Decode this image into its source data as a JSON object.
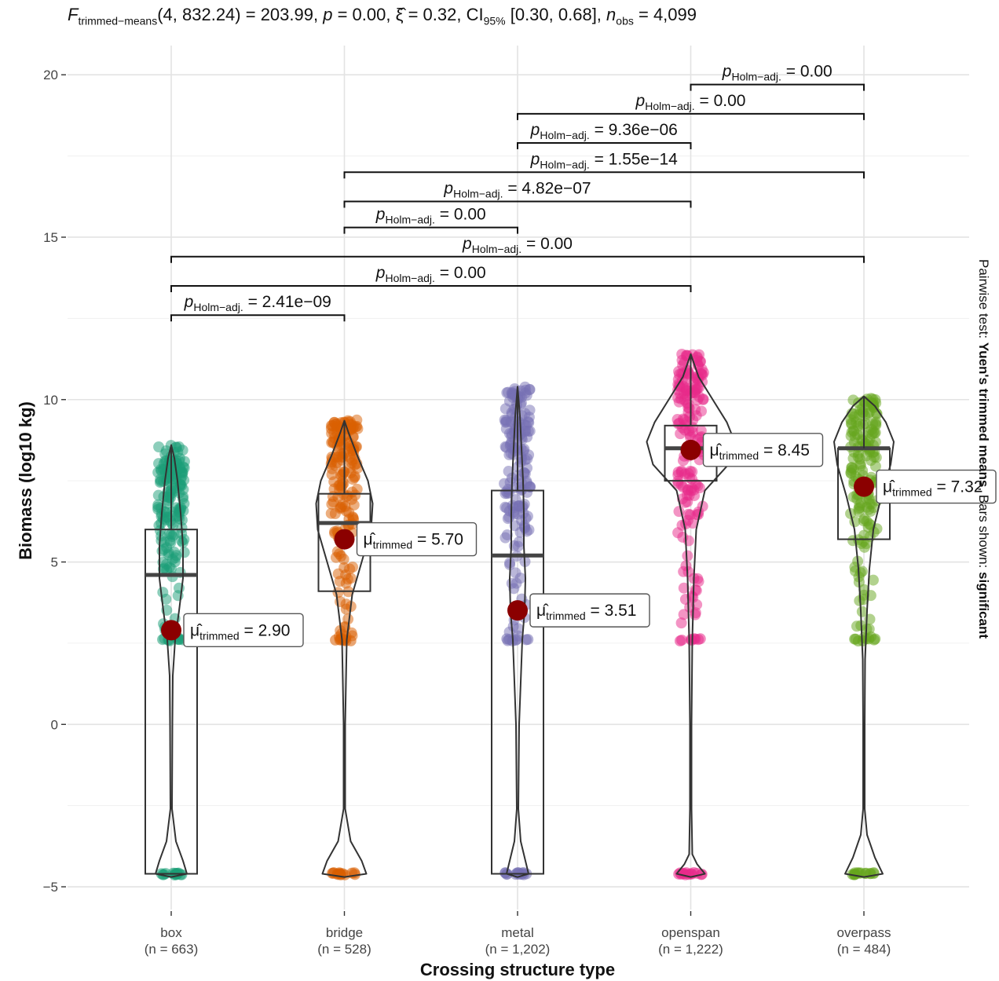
{
  "title": {
    "stat_symbol": "F",
    "stat_subscript": "trimmed−means",
    "stat_args": "(4, 832.24) = 203.99, ",
    "p_symbol": "p",
    "p_value": " = 0.00, ",
    "effect_symbol": "ξ̂",
    "effect_value": " = 0.32, CI",
    "ci_subscript": "95%",
    "ci_value": " [0.30, 0.68], ",
    "n_symbol": "n",
    "n_subscript": "obs",
    "n_value": " = 4,099"
  },
  "side_caption": {
    "prefix": "Pairwise test: ",
    "test_name": "Yuen's trimmed means",
    "middle": ", Bars shown: ",
    "bars_shown": "significant"
  },
  "chart_data": {
    "type": "box-violin",
    "xlabel": "Crossing structure type",
    "ylabel": "Biomass (log10 kg)",
    "ylim": [
      -5.7,
      20.9
    ],
    "yticks": [
      -5,
      0,
      5,
      10,
      15,
      20
    ],
    "grid": true,
    "categories": [
      {
        "name": "box",
        "n_label": "(n = 663)",
        "color": "#1B9E77",
        "q1": -4.6,
        "median": 4.6,
        "q3": 6.0,
        "whisker_low": -4.6,
        "whisker_high": 8.6,
        "trimmed_mean": 2.9,
        "mean_label": "= 2.90",
        "points_low": 2.6,
        "points_high": 8.6
      },
      {
        "name": "bridge",
        "n_label": "(n = 528)",
        "color": "#D95F02",
        "q1": 4.1,
        "median": 6.2,
        "q3": 7.1,
        "whisker_low": -4.6,
        "whisker_high": 9.3,
        "trimmed_mean": 5.7,
        "mean_label": "= 5.70",
        "points_low": 2.6,
        "points_high": 9.4
      },
      {
        "name": "metal",
        "n_label": "(n = 1,202)",
        "color": "#7570B3",
        "q1": -4.6,
        "median": 5.2,
        "q3": 7.2,
        "whisker_low": -4.6,
        "whisker_high": 10.4,
        "trimmed_mean": 3.51,
        "mean_label": "= 3.51",
        "points_low": 2.6,
        "points_high": 10.4
      },
      {
        "name": "openspan",
        "n_label": "(n = 1,222)",
        "color": "#E7298A",
        "q1": 7.5,
        "median": 8.5,
        "q3": 9.2,
        "whisker_low": -4.6,
        "whisker_high": 11.4,
        "trimmed_mean": 8.45,
        "mean_label": "= 8.45",
        "points_low": 2.6,
        "points_high": 11.4
      },
      {
        "name": "overpass",
        "n_label": "(n = 484)",
        "color": "#66A61E",
        "q1": 5.7,
        "median": 8.5,
        "q3": 8.5,
        "whisker_low": -4.6,
        "whisker_high": 10.1,
        "trimmed_mean": 7.32,
        "mean_label": "= 7.32",
        "points_low": 2.6,
        "points_high": 10.1
      }
    ],
    "mean_symbol": "μ̂",
    "mean_subscript": "trimmed",
    "mean_point_color": "#8B0000",
    "pairwise": [
      {
        "from": "box",
        "to": "bridge",
        "y": 12.6,
        "label": "= 2.41e−09"
      },
      {
        "from": "box",
        "to": "openspan",
        "y": 13.5,
        "label": "= 0.00"
      },
      {
        "from": "box",
        "to": "overpass",
        "y": 14.4,
        "label": "= 0.00"
      },
      {
        "from": "bridge",
        "to": "metal",
        "y": 15.3,
        "label": "= 0.00"
      },
      {
        "from": "bridge",
        "to": "openspan",
        "y": 16.1,
        "label": "= 4.82e−07"
      },
      {
        "from": "bridge",
        "to": "overpass",
        "y": 17.0,
        "label": "= 1.55e−14"
      },
      {
        "from": "metal",
        "to": "openspan",
        "y": 17.9,
        "label": "= 9.36e−06"
      },
      {
        "from": "metal",
        "to": "overpass",
        "y": 18.8,
        "label": "= 0.00"
      },
      {
        "from": "openspan",
        "to": "overpass",
        "y": 19.7,
        "label": "= 0.00"
      }
    ],
    "pairwise_symbol": "p",
    "pairwise_subscript": "Holm−adj."
  }
}
